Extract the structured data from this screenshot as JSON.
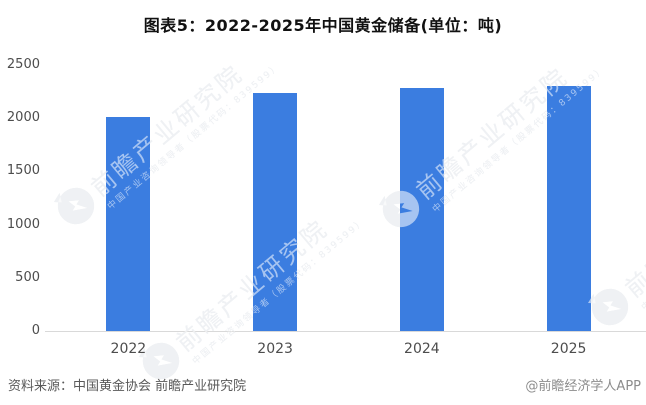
{
  "title": "图表5：2022-2025年中国黄金储备(单位：吨)",
  "chart_data": {
    "type": "bar",
    "title": "图表5：2022-2025年中国黄金储备(单位：吨)",
    "categories": [
      "2022",
      "2023",
      "2024",
      "2025"
    ],
    "values": [
      2010,
      2235,
      2280,
      2300
    ],
    "unit": "吨",
    "xlabel": "",
    "ylabel": "",
    "ylim": [
      0,
      2500
    ],
    "yticks": [
      0,
      500,
      1000,
      1500,
      2000,
      2500
    ],
    "bar_color": "#3b7de0",
    "grid": false,
    "legend": "none"
  },
  "watermark": {
    "text": "前瞻产业研究院",
    "subtext": "中国产业咨询领导者（股票代码：839599）"
  },
  "footer": {
    "source": "资料来源：中国黄金协会 前瞻产业研究院",
    "credit": "@前瞻经济学人APP"
  }
}
